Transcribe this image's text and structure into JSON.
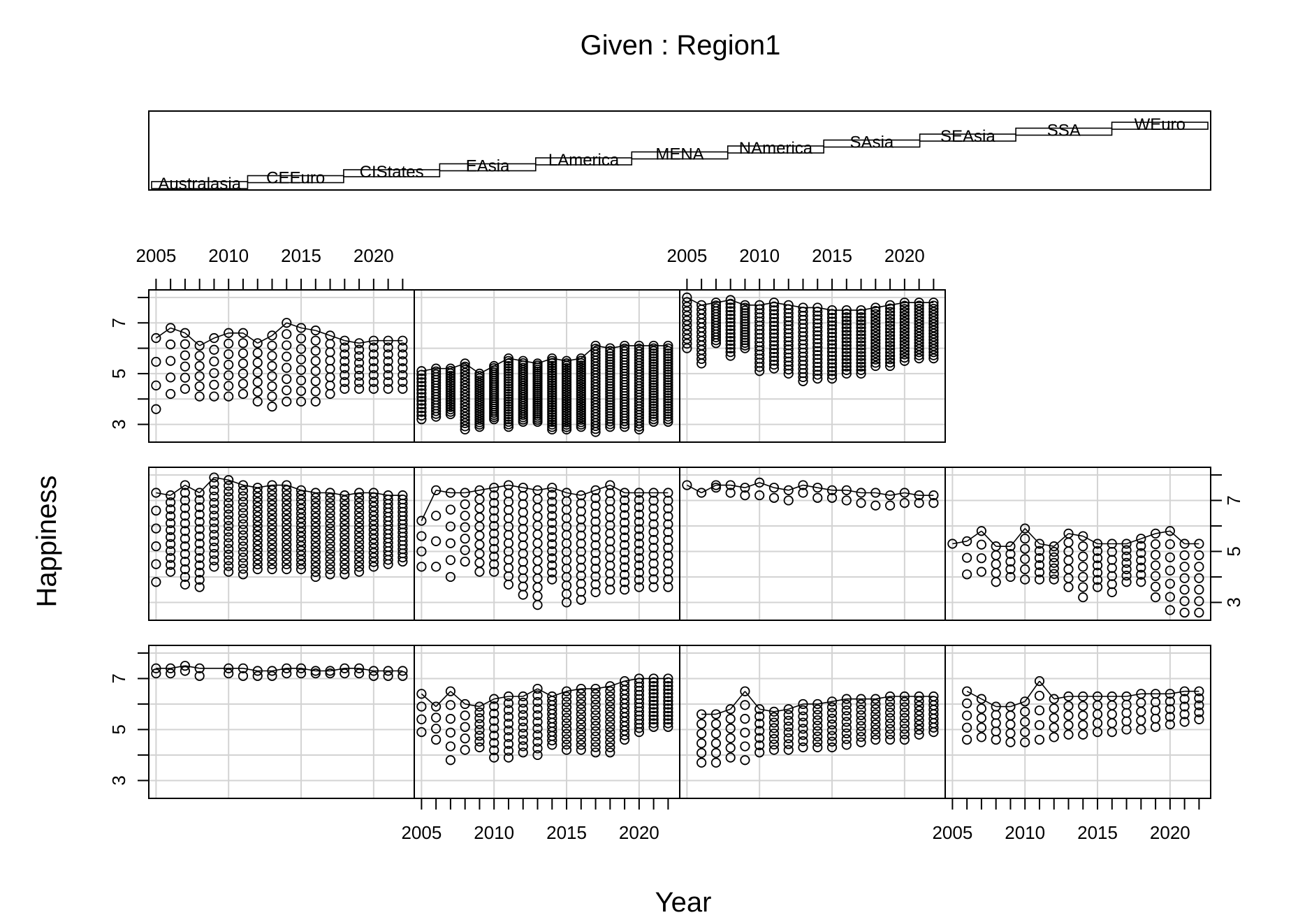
{
  "chart_data": {
    "type": "scatter",
    "title": "Given : Region1",
    "xlabel": "Year",
    "ylabel": "Happiness",
    "xlim": [
      2004.5,
      2022.8
    ],
    "ylim": [
      2.3,
      8.3
    ],
    "x_ticks": [
      2005,
      2010,
      2015,
      2020
    ],
    "y_ticks": [
      3,
      5,
      7
    ],
    "grid": true,
    "given_levels": [
      "Australasia",
      "CEEuro",
      "CIStates",
      "EAsia",
      "LAmerica",
      "MENA",
      "NAmerica",
      "SAsia",
      "SEAsia",
      "SSA",
      "WEuro"
    ],
    "panels": [
      {
        "level": "Australasia",
        "years": [
          2005,
          2006,
          2007,
          2008,
          2010,
          2011,
          2012,
          2013,
          2014,
          2015,
          2016,
          2017,
          2018,
          2019,
          2020,
          2021,
          2022
        ],
        "min": [
          7.2,
          7.2,
          7.3,
          7.1,
          7.2,
          7.1,
          7.1,
          7.1,
          7.2,
          7.2,
          7.2,
          7.2,
          7.2,
          7.2,
          7.1,
          7.1,
          7.1
        ],
        "max": [
          7.4,
          7.4,
          7.5,
          7.4,
          7.4,
          7.4,
          7.3,
          7.3,
          7.4,
          7.4,
          7.3,
          7.3,
          7.4,
          7.4,
          7.3,
          7.3,
          7.3
        ],
        "n": [
          2,
          2,
          2,
          2,
          2,
          2,
          2,
          2,
          2,
          2,
          2,
          2,
          2,
          2,
          2,
          2,
          2
        ]
      },
      {
        "level": "CEEuro",
        "years": [
          2005,
          2006,
          2007,
          2008,
          2009,
          2010,
          2011,
          2012,
          2013,
          2014,
          2015,
          2016,
          2017,
          2018,
          2019,
          2020,
          2021,
          2022
        ],
        "min": [
          4.9,
          4.6,
          3.8,
          4.2,
          4.3,
          3.9,
          3.9,
          4.1,
          4.0,
          4.4,
          4.2,
          4.2,
          4.1,
          4.1,
          4.6,
          4.9,
          5.1,
          5.1
        ],
        "max": [
          6.4,
          5.9,
          6.5,
          6.0,
          5.9,
          6.2,
          6.3,
          6.3,
          6.6,
          6.3,
          6.5,
          6.6,
          6.6,
          6.7,
          6.9,
          7.0,
          7.0,
          7.0
        ],
        "n": [
          4,
          4,
          6,
          5,
          8,
          9,
          10,
          10,
          11,
          12,
          12,
          13,
          13,
          14,
          14,
          14,
          14,
          14
        ]
      },
      {
        "level": "CIStates",
        "years": [
          2006,
          2007,
          2008,
          2009,
          2010,
          2011,
          2012,
          2013,
          2014,
          2015,
          2016,
          2017,
          2018,
          2019,
          2020,
          2021,
          2022
        ],
        "min": [
          3.7,
          3.7,
          3.9,
          3.8,
          4.1,
          4.2,
          4.2,
          4.3,
          4.3,
          4.3,
          4.4,
          4.5,
          4.6,
          4.6,
          4.6,
          4.8,
          4.9
        ],
        "max": [
          5.6,
          5.6,
          5.8,
          6.5,
          5.8,
          5.7,
          5.8,
          6.0,
          6.0,
          6.1,
          6.2,
          6.2,
          6.2,
          6.3,
          6.3,
          6.3,
          6.3
        ],
        "n": [
          6,
          6,
          6,
          6,
          7,
          8,
          8,
          8,
          9,
          9,
          9,
          9,
          9,
          9,
          9,
          9,
          9
        ]
      },
      {
        "level": "EAsia",
        "years": [
          2006,
          2007,
          2008,
          2009,
          2010,
          2011,
          2012,
          2013,
          2014,
          2015,
          2016,
          2017,
          2018,
          2019,
          2020,
          2021,
          2022
        ],
        "min": [
          4.6,
          4.7,
          4.6,
          4.5,
          4.5,
          4.6,
          4.7,
          4.8,
          4.8,
          4.9,
          4.9,
          5.0,
          5.0,
          5.1,
          5.2,
          5.3,
          5.4
        ],
        "max": [
          6.5,
          6.2,
          5.9,
          5.9,
          6.1,
          6.9,
          6.2,
          6.3,
          6.3,
          6.3,
          6.3,
          6.3,
          6.4,
          6.4,
          6.4,
          6.5,
          6.5
        ],
        "n": [
          5,
          5,
          5,
          5,
          5,
          5,
          5,
          5,
          5,
          5,
          5,
          5,
          5,
          5,
          5,
          5,
          5
        ]
      },
      {
        "level": "LAmerica",
        "years": [
          2005,
          2006,
          2007,
          2008,
          2009,
          2010,
          2011,
          2012,
          2013,
          2014,
          2015,
          2016,
          2017,
          2018,
          2019,
          2020,
          2021,
          2022
        ],
        "min": [
          3.8,
          4.2,
          3.7,
          3.6,
          4.4,
          4.2,
          4.1,
          4.3,
          4.3,
          4.3,
          4.3,
          4.0,
          4.1,
          4.1,
          4.2,
          4.4,
          4.5,
          4.6
        ],
        "max": [
          7.3,
          7.2,
          7.6,
          7.3,
          7.9,
          7.8,
          7.6,
          7.5,
          7.6,
          7.6,
          7.4,
          7.3,
          7.3,
          7.2,
          7.3,
          7.3,
          7.2,
          7.2
        ],
        "n": [
          6,
          12,
          14,
          14,
          15,
          17,
          17,
          18,
          18,
          18,
          18,
          18,
          17,
          17,
          17,
          17,
          17,
          17
        ]
      },
      {
        "level": "MENA",
        "years": [
          2005,
          2006,
          2007,
          2008,
          2009,
          2010,
          2011,
          2012,
          2013,
          2014,
          2015,
          2016,
          2017,
          2018,
          2019,
          2020,
          2021,
          2022
        ],
        "min": [
          4.4,
          4.4,
          4.0,
          4.6,
          4.2,
          4.2,
          3.7,
          3.3,
          2.9,
          3.9,
          3.0,
          3.1,
          3.4,
          3.5,
          3.5,
          3.6,
          3.6,
          3.6
        ],
        "max": [
          6.2,
          7.4,
          7.3,
          7.3,
          7.4,
          7.5,
          7.6,
          7.5,
          7.4,
          7.5,
          7.3,
          7.2,
          7.4,
          7.6,
          7.3,
          7.3,
          7.3,
          7.3
        ],
        "n": [
          4,
          4,
          6,
          7,
          10,
          12,
          13,
          14,
          14,
          14,
          14,
          14,
          14,
          14,
          14,
          14,
          13,
          13
        ]
      },
      {
        "level": "NAmerica",
        "years": [
          2005,
          2006,
          2007,
          2008,
          2009,
          2010,
          2011,
          2012,
          2013,
          2014,
          2015,
          2016,
          2017,
          2018,
          2019,
          2020,
          2021,
          2022
        ],
        "min": [
          7.4,
          7.3,
          7.5,
          7.3,
          7.2,
          7.2,
          7.1,
          7.0,
          7.3,
          7.1,
          7.1,
          7.0,
          6.9,
          6.8,
          6.8,
          6.9,
          6.9,
          6.9
        ],
        "max": [
          7.6,
          7.3,
          7.6,
          7.6,
          7.5,
          7.7,
          7.5,
          7.4,
          7.6,
          7.5,
          7.4,
          7.4,
          7.3,
          7.3,
          7.2,
          7.3,
          7.2,
          7.2
        ],
        "n": [
          1,
          1,
          2,
          2,
          2,
          2,
          2,
          2,
          2,
          2,
          2,
          2,
          2,
          2,
          2,
          2,
          2,
          2
        ]
      },
      {
        "level": "SAsia",
        "years": [
          2005,
          2006,
          2007,
          2008,
          2009,
          2010,
          2011,
          2012,
          2013,
          2014,
          2015,
          2016,
          2017,
          2018,
          2019,
          2020,
          2021,
          2022
        ],
        "min": [
          5.0,
          4.1,
          4.2,
          3.8,
          4.0,
          3.9,
          3.9,
          3.9,
          3.6,
          3.2,
          3.6,
          3.4,
          3.8,
          3.8,
          3.2,
          2.7,
          2.6,
          2.6
        ],
        "max": [
          5.3,
          5.4,
          5.8,
          5.2,
          5.2,
          5.9,
          5.3,
          5.2,
          5.7,
          5.6,
          5.3,
          5.3,
          5.3,
          5.5,
          5.7,
          5.8,
          5.3,
          5.3
        ],
        "n": [
          1,
          3,
          4,
          5,
          5,
          6,
          6,
          7,
          7,
          7,
          7,
          7,
          7,
          7,
          7,
          7,
          7,
          7
        ]
      },
      {
        "level": "SEAsia",
        "years": [
          2005,
          2006,
          2007,
          2008,
          2009,
          2010,
          2011,
          2012,
          2013,
          2014,
          2015,
          2016,
          2017,
          2018,
          2019,
          2020,
          2021,
          2022
        ],
        "min": [
          3.6,
          4.2,
          4.4,
          4.1,
          4.1,
          4.1,
          4.2,
          3.9,
          3.7,
          3.9,
          3.9,
          3.9,
          4.2,
          4.4,
          4.4,
          4.4,
          4.4,
          4.4
        ],
        "max": [
          6.4,
          6.8,
          6.6,
          6.1,
          6.4,
          6.6,
          6.6,
          6.2,
          6.5,
          7.0,
          6.8,
          6.7,
          6.5,
          6.3,
          6.2,
          6.3,
          6.3,
          6.3
        ],
        "n": [
          4,
          5,
          6,
          6,
          6,
          7,
          7,
          7,
          8,
          8,
          8,
          8,
          8,
          8,
          8,
          8,
          8,
          8
        ]
      },
      {
        "level": "SSA",
        "years": [
          2005,
          2006,
          2007,
          2008,
          2009,
          2010,
          2011,
          2012,
          2013,
          2014,
          2015,
          2016,
          2017,
          2018,
          2019,
          2020,
          2021,
          2022
        ],
        "min": [
          3.2,
          3.3,
          3.4,
          2.8,
          2.9,
          3.2,
          2.9,
          3.1,
          3.1,
          2.8,
          2.8,
          2.9,
          2.7,
          2.9,
          2.9,
          2.8,
          3.1,
          3.1
        ],
        "max": [
          5.1,
          5.2,
          5.2,
          5.4,
          5.0,
          5.3,
          5.6,
          5.5,
          5.4,
          5.6,
          5.5,
          5.6,
          6.1,
          6.0,
          6.1,
          6.1,
          6.1,
          6.1
        ],
        "n": [
          14,
          18,
          20,
          22,
          24,
          26,
          28,
          28,
          30,
          30,
          30,
          30,
          30,
          30,
          30,
          30,
          30,
          30
        ]
      },
      {
        "level": "WEuro",
        "years": [
          2005,
          2006,
          2007,
          2008,
          2009,
          2010,
          2011,
          2012,
          2013,
          2014,
          2015,
          2016,
          2017,
          2018,
          2019,
          2020,
          2021,
          2022
        ],
        "min": [
          6.0,
          5.4,
          6.2,
          5.7,
          6.0,
          5.1,
          5.2,
          5.0,
          4.7,
          4.8,
          4.8,
          5.0,
          5.0,
          5.3,
          5.3,
          5.5,
          5.6,
          5.6
        ],
        "max": [
          8.0,
          7.7,
          7.8,
          7.9,
          7.7,
          7.7,
          7.8,
          7.7,
          7.6,
          7.6,
          7.5,
          7.5,
          7.5,
          7.6,
          7.7,
          7.8,
          7.8,
          7.8
        ],
        "n": [
          12,
          14,
          15,
          16,
          17,
          17,
          18,
          18,
          19,
          19,
          19,
          19,
          19,
          19,
          19,
          19,
          19,
          19
        ]
      }
    ]
  }
}
